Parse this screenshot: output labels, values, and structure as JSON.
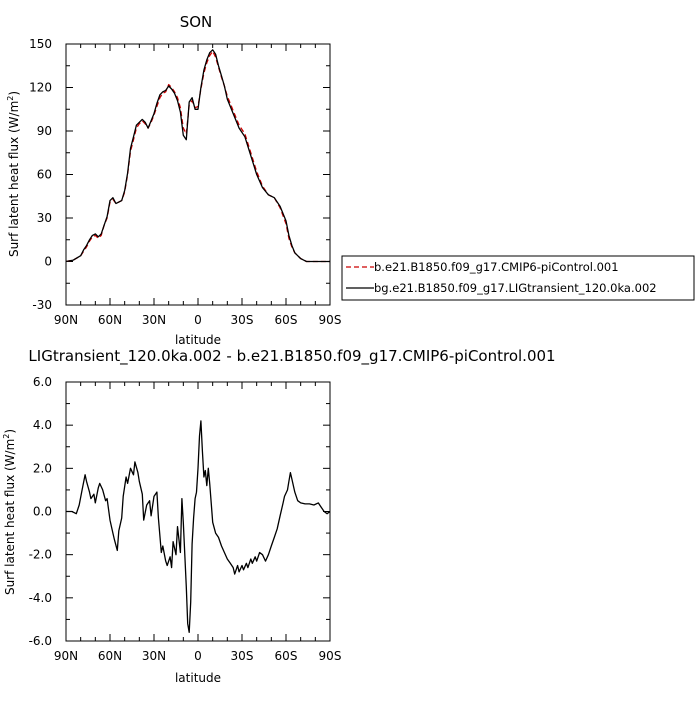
{
  "chart_data": [
    {
      "type": "line",
      "title": "SON",
      "xlabel": "latitude",
      "ylabel": "Surf latent heat flux (W/m²)",
      "ylabel_main": "Surf latent heat flux (W/m",
      "ylabel_sup": "2",
      "ylabel_close": ")",
      "xlim": [
        90,
        -90
      ],
      "ylim": [
        -30,
        150
      ],
      "xticks": [
        90,
        60,
        30,
        0,
        -30,
        -60,
        -90
      ],
      "xtick_labels": [
        "90N",
        "60N",
        "30N",
        "0",
        "30S",
        "60S",
        "90S"
      ],
      "yticks": [
        -30,
        0,
        30,
        60,
        90,
        120,
        150
      ],
      "ytick_labels": [
        "-30",
        "0",
        "30",
        "60",
        "90",
        "120",
        "150"
      ],
      "legend_position": "right",
      "series": [
        {
          "name": "b.e21.B1850.f09_g17.CMIP6-piControl.001",
          "color": "#cc0000",
          "dash": "dashed",
          "x": [
            90,
            85,
            80,
            78,
            76,
            74,
            72,
            70,
            68,
            66,
            64,
            62,
            60,
            58,
            56,
            54,
            52,
            50,
            48,
            46,
            44,
            42,
            40,
            38,
            36,
            34,
            32,
            30,
            28,
            26,
            24,
            22,
            20,
            18,
            16,
            14,
            12,
            10,
            8,
            6,
            4,
            2,
            0,
            -2,
            -4,
            -6,
            -8,
            -10,
            -12,
            -14,
            -16,
            -18,
            -20,
            -24,
            -28,
            -32,
            -36,
            -40,
            -44,
            -48,
            -52,
            -56,
            -60,
            -62,
            -64,
            -66,
            -68,
            -70,
            -72,
            -74,
            -76,
            -78,
            -80,
            -85,
            -90
          ],
          "y": [
            0,
            1,
            4,
            7,
            10,
            14,
            17,
            18,
            16,
            18,
            25,
            30,
            41,
            43,
            40,
            41,
            42,
            48,
            60,
            76,
            84,
            92,
            95,
            97,
            95,
            92,
            96,
            101,
            107,
            113,
            116,
            117,
            122,
            120,
            117,
            113,
            106,
            92,
            88,
            108,
            111,
            106,
            107,
            119,
            130,
            137,
            142,
            145,
            141,
            134,
            127,
            121,
            114,
            104,
            94,
            88,
            75,
            62,
            52,
            46,
            44,
            37,
            26,
            16,
            10,
            6,
            4,
            2,
            1,
            0,
            0,
            0,
            0,
            0,
            0
          ]
        },
        {
          "name": "bg.e21.B1850.f09_g17.LIGtransient_120.0ka.002",
          "color": "#000000",
          "dash": "solid",
          "x": [
            90,
            85,
            80,
            78,
            76,
            74,
            72,
            70,
            68,
            66,
            64,
            62,
            60,
            58,
            56,
            54,
            52,
            50,
            48,
            46,
            44,
            42,
            40,
            38,
            36,
            34,
            32,
            30,
            28,
            26,
            24,
            22,
            20,
            18,
            16,
            14,
            12,
            10,
            8,
            6,
            4,
            2,
            0,
            -2,
            -4,
            -6,
            -8,
            -10,
            -12,
            -14,
            -16,
            -18,
            -20,
            -24,
            -28,
            -32,
            -36,
            -40,
            -44,
            -48,
            -52,
            -56,
            -60,
            -62,
            -64,
            -66,
            -68,
            -70,
            -72,
            -74,
            -76,
            -78,
            -80,
            -85,
            -90
          ],
          "y": [
            0,
            1,
            4,
            8,
            11,
            15,
            18,
            19,
            17,
            19,
            25,
            31,
            42,
            44,
            40,
            41,
            42,
            49,
            61,
            78,
            86,
            94,
            96,
            98,
            96,
            92,
            97,
            102,
            109,
            115,
            117,
            118,
            121,
            119,
            116,
            111,
            103,
            87,
            84,
            110,
            113,
            105,
            105,
            120,
            132,
            139,
            144,
            146,
            143,
            135,
            128,
            121,
            112,
            102,
            92,
            86,
            73,
            60,
            51,
            46,
            44,
            38,
            28,
            18,
            11,
            6,
            4,
            2,
            1,
            0,
            0,
            0,
            0,
            0,
            0
          ]
        }
      ]
    },
    {
      "type": "line",
      "title": "LIGtransient_120.0ka.002 - b.e21.B1850.f09_g17.CMIP6-piControl.001",
      "xlabel": "latitude",
      "ylabel": "Surf latent heat flux (W/m²)",
      "ylabel_main": "Surf latent heat flux (W/m",
      "ylabel_sup": "2",
      "ylabel_close": ")",
      "xlim": [
        90,
        -90
      ],
      "ylim": [
        -6,
        6
      ],
      "xticks": [
        90,
        60,
        30,
        0,
        -30,
        -60,
        -90
      ],
      "xtick_labels": [
        "90N",
        "60N",
        "30N",
        "0",
        "30S",
        "60S",
        "90S"
      ],
      "yticks": [
        -6,
        -4,
        -2,
        0,
        2,
        4,
        6
      ],
      "ytick_labels": [
        "-6.0",
        "-4.0",
        "-2.0",
        "0.0",
        "2.0",
        "4.0",
        "6.0"
      ],
      "series": [
        {
          "color": "#000000",
          "dash": "solid",
          "x": [
            90,
            86,
            83,
            81,
            79,
            77,
            76,
            74,
            73,
            71,
            70,
            68,
            67,
            65,
            63,
            62,
            60,
            58,
            57,
            55,
            54,
            52,
            51,
            49,
            48,
            46,
            44,
            43,
            41,
            40,
            38,
            37,
            35,
            33,
            32,
            30,
            28,
            27,
            25,
            24,
            22,
            21,
            19,
            18,
            17,
            15,
            14,
            12,
            11,
            10,
            8,
            7,
            6,
            5,
            4,
            3,
            2,
            1,
            0,
            -1,
            -2,
            -3,
            -4,
            -5,
            -6,
            -7,
            -8,
            -10,
            -12,
            -14,
            -16,
            -18,
            -20,
            -22,
            -24,
            -25,
            -27,
            -28,
            -30,
            -31,
            -33,
            -34,
            -36,
            -37,
            -39,
            -40,
            -42,
            -44,
            -46,
            -48,
            -50,
            -52,
            -54,
            -56,
            -58,
            -59,
            -61,
            -62,
            -63,
            -64,
            -66,
            -68,
            -70,
            -73,
            -76,
            -79,
            -82,
            -84,
            -86,
            -88,
            -90
          ],
          "y": [
            0.0,
            0.0,
            -0.1,
            0.3,
            1.0,
            1.7,
            1.4,
            0.9,
            0.6,
            0.8,
            0.4,
            1.1,
            1.3,
            1.0,
            0.5,
            0.6,
            -0.4,
            -1.0,
            -1.3,
            -1.8,
            -0.9,
            -0.3,
            0.7,
            1.6,
            1.3,
            2.0,
            1.7,
            2.3,
            1.8,
            1.4,
            0.8,
            -0.4,
            0.3,
            0.5,
            -0.2,
            0.7,
            0.9,
            -0.3,
            -1.9,
            -1.6,
            -2.3,
            -2.5,
            -2.1,
            -2.6,
            -1.4,
            -2.0,
            -0.7,
            -1.9,
            0.6,
            -0.5,
            -3.5,
            -5.2,
            -5.6,
            -4.2,
            -1.5,
            -0.3,
            0.6,
            0.9,
            2.0,
            3.5,
            4.2,
            2.8,
            1.6,
            1.9,
            1.2,
            2.0,
            1.3,
            -0.5,
            -1.0,
            -1.2,
            -1.6,
            -1.9,
            -2.2,
            -2.4,
            -2.6,
            -2.9,
            -2.5,
            -2.8,
            -2.5,
            -2.7,
            -2.4,
            -2.6,
            -2.2,
            -2.4,
            -2.1,
            -2.3,
            -1.9,
            -2.0,
            -2.3,
            -2.0,
            -1.6,
            -1.2,
            -0.8,
            -0.2,
            0.4,
            0.7,
            1.0,
            1.4,
            1.8,
            1.5,
            0.9,
            0.5,
            0.4,
            0.35,
            0.35,
            0.3,
            0.4,
            0.2,
            0.0,
            -0.1,
            0.0
          ]
        }
      ]
    }
  ]
}
